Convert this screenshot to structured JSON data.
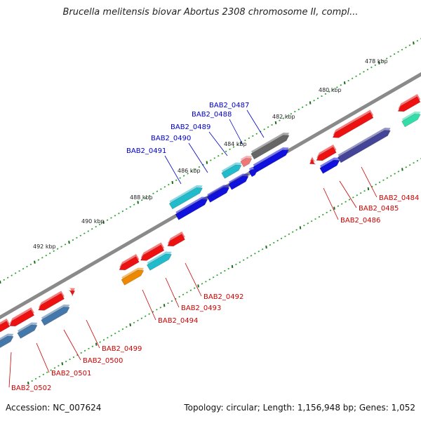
{
  "title": "Brucella melitensis biovar Abortus 2308 chromosome II, compl...",
  "footer": {
    "accession": "Accession: NC_007624",
    "summary": "Topology: circular; Length: 1,156,948 bp; Genes: 1,052"
  },
  "colors": {
    "backbone": "#8a8a8a",
    "tick_major": "#1a6b1a",
    "tick_minor": "#2aa02a",
    "label_forward": "#0000cc",
    "label_reverse": "#cc0000",
    "red": "#ee1111",
    "blue": "#1111dd",
    "cyan": "#22bbcc",
    "gray": "#666666",
    "pink": "#ee7777",
    "steelblue": "#4477aa",
    "navy": "#444499",
    "orange": "#ee8800",
    "mint": "#33ddaa"
  },
  "kbp_labels": [
    "478 kbp",
    "480 kbp",
    "482 kbp",
    "484 kbp",
    "486 kbp",
    "488 kbp",
    "490 kbp",
    "492 kbp"
  ],
  "gene_labels_forward": [
    "BAB2_0487",
    "BAB2_0488",
    "BAB2_0489",
    "BAB2_0490",
    "BAB2_0491"
  ],
  "gene_labels_reverse": [
    "BAB2_0484",
    "BAB2_0485",
    "BAB2_0486",
    "BAB2_0492",
    "BAB2_0493",
    "BAB2_0494",
    "BAB2_0499",
    "BAB2_0500",
    "BAB2_0501",
    "BAB2_0502"
  ]
}
